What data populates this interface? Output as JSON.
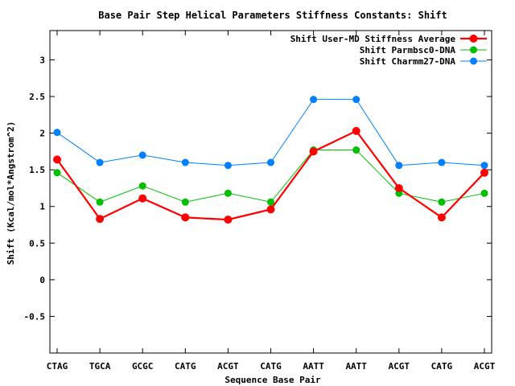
{
  "chart_data": {
    "type": "line",
    "title": "Base Pair Step Helical Parameters Stiffness Constants: Shift",
    "xlabel": "Sequence Base Pair",
    "ylabel": "Shift (Kcal/mol*Angstrom^2)",
    "categories": [
      "CTAG",
      "TGCA",
      "GCGC",
      "CATG",
      "ACGT",
      "CATG",
      "AATT",
      "AATT",
      "ACGT",
      "CATG",
      "ACGT"
    ],
    "ylim": [
      -1.0,
      3.4
    ],
    "yticks": [
      -0.5,
      0,
      0.5,
      1,
      1.5,
      2,
      2.5,
      3
    ],
    "ytick_labels": [
      "-0.5",
      "0",
      "0.5",
      "1",
      "1.5",
      "2",
      "2.5",
      "3"
    ],
    "legend_position": "top-right",
    "grid": false,
    "series": [
      {
        "name": "Shift User-MD Stiffness Average",
        "color": "#ff0000",
        "values": [
          1.64,
          0.83,
          1.11,
          0.85,
          0.82,
          0.96,
          1.75,
          2.03,
          1.25,
          0.85,
          1.46
        ]
      },
      {
        "name": "Shift Parmbsc0-DNA",
        "color": "#00c000",
        "values": [
          1.46,
          1.06,
          1.28,
          1.06,
          1.18,
          1.06,
          1.77,
          1.77,
          1.18,
          1.06,
          1.18
        ]
      },
      {
        "name": "Shift Charmm27-DNA",
        "color": "#0080ff",
        "values": [
          2.01,
          1.6,
          1.7,
          1.6,
          1.56,
          1.6,
          2.46,
          2.46,
          1.56,
          1.6,
          1.56
        ]
      }
    ]
  }
}
